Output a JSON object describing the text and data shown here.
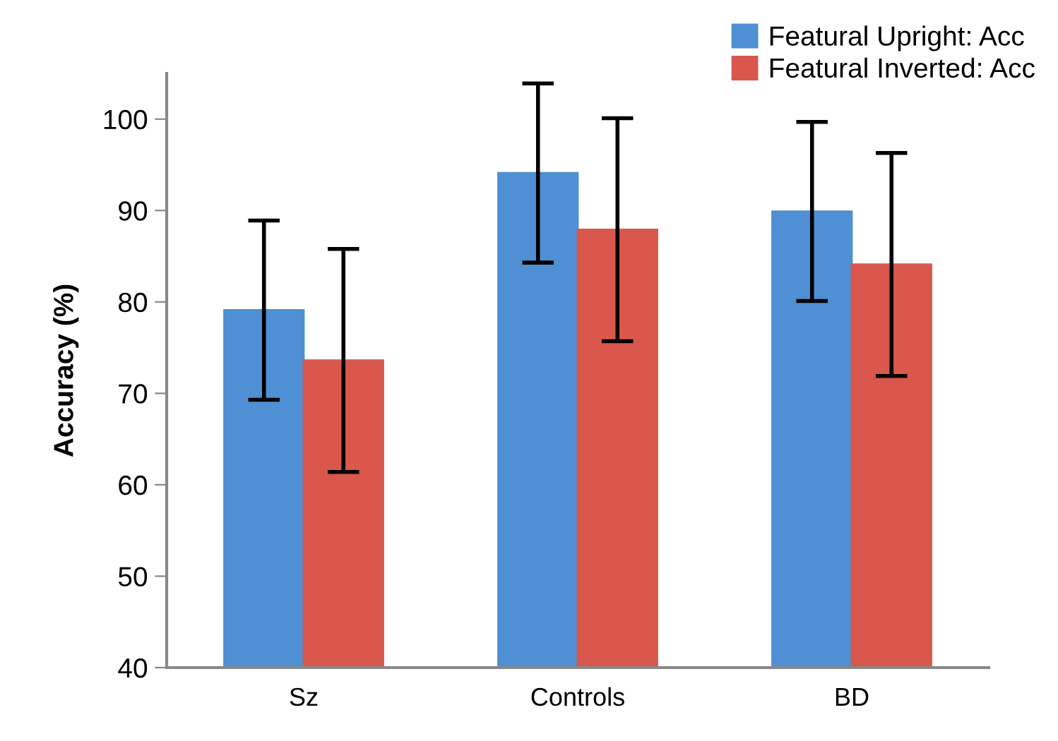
{
  "chart_data": {
    "type": "bar",
    "ylabel": "Accuracy (%)",
    "categories": [
      "Sz",
      "Controls",
      "BD"
    ],
    "series": [
      {
        "name": "Featural Upright: Acc",
        "color": "#4f8fd3",
        "values": [
          79.1,
          94.1,
          89.9
        ],
        "errors": [
          9.8,
          9.8,
          9.8
        ]
      },
      {
        "name": "Featural Inverted: Acc",
        "color": "#d9574c",
        "values": [
          73.6,
          87.9,
          84.1
        ],
        "errors": [
          12.2,
          12.2,
          12.2
        ]
      }
    ],
    "ylim": [
      40,
      105
    ],
    "yticks": [
      40,
      50,
      60,
      70,
      80,
      90,
      100
    ],
    "grid": false,
    "legend": "top right"
  }
}
